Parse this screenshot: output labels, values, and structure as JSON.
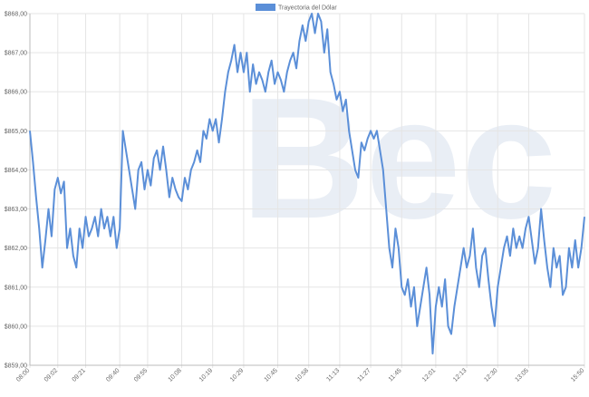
{
  "chart_data": {
    "type": "line",
    "watermark": "Bec",
    "categories": [
      "08:00",
      null,
      null,
      null,
      null,
      null,
      null,
      null,
      null,
      "09:02",
      null,
      null,
      null,
      null,
      null,
      null,
      null,
      null,
      "09:21",
      null,
      null,
      null,
      null,
      null,
      null,
      null,
      null,
      null,
      null,
      "09:40",
      null,
      null,
      null,
      null,
      null,
      null,
      null,
      null,
      "09:55",
      null,
      null,
      null,
      null,
      null,
      null,
      null,
      null,
      null,
      null,
      "10:08",
      null,
      null,
      null,
      null,
      null,
      null,
      null,
      null,
      null,
      "10:19",
      null,
      null,
      null,
      null,
      null,
      null,
      null,
      null,
      null,
      "10:29",
      null,
      null,
      null,
      null,
      null,
      null,
      null,
      null,
      null,
      null,
      "10:45",
      null,
      null,
      null,
      null,
      null,
      null,
      null,
      null,
      null,
      "10:58",
      null,
      null,
      null,
      null,
      null,
      null,
      null,
      null,
      null,
      "11:13",
      null,
      null,
      null,
      null,
      null,
      null,
      null,
      null,
      null,
      "11:27",
      null,
      null,
      null,
      null,
      null,
      null,
      null,
      null,
      null,
      "11:45",
      null,
      null,
      null,
      null,
      null,
      null,
      null,
      null,
      null,
      null,
      "12:01",
      null,
      null,
      null,
      null,
      null,
      null,
      null,
      null,
      null,
      "12:13",
      null,
      null,
      null,
      null,
      null,
      null,
      null,
      null,
      null,
      "12:30",
      null,
      null,
      null,
      null,
      null,
      null,
      null,
      null,
      null,
      "13:05",
      null,
      null,
      null,
      null,
      null,
      null,
      null,
      null,
      null,
      null,
      null,
      null,
      null,
      null,
      null,
      null,
      null,
      "15:50"
    ],
    "series": [
      {
        "name": "Trayectoria del Dólar",
        "color": "#5b8fd8",
        "values": [
          865.0,
          864.2,
          863.3,
          862.5,
          861.5,
          862.2,
          863.0,
          862.3,
          863.5,
          863.8,
          863.4,
          863.7,
          862.0,
          862.5,
          861.8,
          861.5,
          862.5,
          862.0,
          862.8,
          862.3,
          862.5,
          862.8,
          862.3,
          863.0,
          862.5,
          862.8,
          862.3,
          862.8,
          862.0,
          862.5,
          865.0,
          864.5,
          864.0,
          863.5,
          863.0,
          864.0,
          864.2,
          863.5,
          864.0,
          863.6,
          864.3,
          864.5,
          864.0,
          864.6,
          864.0,
          863.3,
          863.8,
          863.5,
          863.3,
          863.2,
          863.8,
          863.5,
          864.0,
          864.2,
          864.5,
          864.2,
          865.0,
          864.8,
          865.3,
          865.0,
          865.3,
          864.7,
          865.3,
          866.0,
          866.5,
          866.8,
          867.2,
          866.5,
          867.0,
          866.5,
          867.0,
          866.0,
          866.7,
          866.2,
          866.5,
          866.3,
          866.0,
          866.5,
          866.8,
          866.2,
          866.5,
          866.3,
          866.0,
          866.5,
          866.8,
          867.0,
          866.6,
          867.3,
          867.7,
          867.3,
          867.8,
          868.0,
          867.5,
          868.0,
          867.8,
          867.0,
          867.6,
          866.5,
          866.2,
          865.8,
          866.0,
          865.5,
          865.8,
          865.0,
          864.5,
          864.0,
          863.8,
          864.7,
          864.5,
          864.8,
          865.0,
          864.8,
          865.0,
          864.5,
          864.0,
          863.0,
          862.0,
          861.5,
          862.5,
          862.0,
          861.0,
          860.8,
          861.2,
          860.5,
          861.0,
          860.0,
          860.5,
          861.0,
          861.5,
          860.8,
          859.3,
          860.5,
          861.0,
          860.5,
          861.2,
          860.0,
          859.8,
          860.5,
          861.0,
          861.5,
          862.0,
          861.5,
          861.8,
          862.5,
          861.5,
          861.0,
          861.8,
          862.0,
          861.2,
          860.5,
          860.0,
          861.0,
          861.5,
          862.0,
          862.3,
          861.8,
          862.5,
          862.0,
          862.3,
          862.0,
          862.5,
          862.8,
          862.2,
          861.6,
          862.0,
          863.0,
          862.2,
          861.5,
          861.0,
          862.0,
          861.5,
          861.8,
          860.8,
          861.0,
          862.0,
          861.5,
          862.2,
          861.5,
          862.0,
          862.8
        ]
      }
    ],
    "ylim": [
      859,
      868
    ],
    "yticks": [
      {
        "value": 859,
        "label": "$859,00"
      },
      {
        "value": 860,
        "label": "$860,00"
      },
      {
        "value": 861,
        "label": "$861,00"
      },
      {
        "value": 862,
        "label": "$862,00"
      },
      {
        "value": 863,
        "label": "$863,00"
      },
      {
        "value": 864,
        "label": "$864,00"
      },
      {
        "value": 865,
        "label": "$865,00"
      },
      {
        "value": 866,
        "label": "$866,00"
      },
      {
        "value": 867,
        "label": "$867,00"
      },
      {
        "value": 868,
        "label": "$868,00"
      }
    ],
    "grid": true
  }
}
